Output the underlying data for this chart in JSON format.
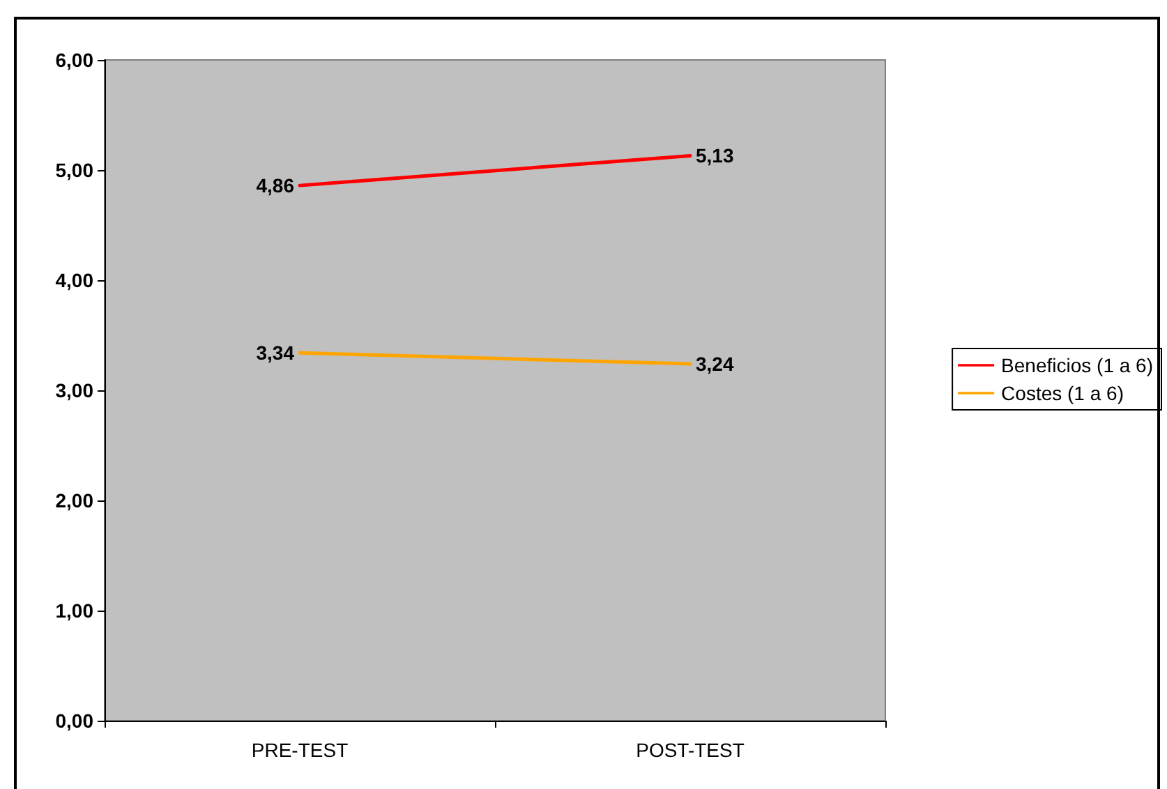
{
  "chart_data": {
    "type": "line",
    "categories": [
      "PRE-TEST",
      "POST-TEST"
    ],
    "series": [
      {
        "name": "Beneficios (1 a 6)",
        "color": "#ff0000",
        "values": [
          4.86,
          5.13
        ],
        "value_labels": [
          "4,86",
          "5,13"
        ]
      },
      {
        "name": "Costes (1 a 6)",
        "color": "#ffa500",
        "values": [
          3.34,
          3.24
        ],
        "value_labels": [
          "3,34",
          "3,24"
        ]
      }
    ],
    "ylim": [
      0,
      6
    ],
    "yticks": [
      {
        "value": 0,
        "label": "0,00"
      },
      {
        "value": 1,
        "label": "1,00"
      },
      {
        "value": 2,
        "label": "2,00"
      },
      {
        "value": 3,
        "label": "3,00"
      },
      {
        "value": 4,
        "label": "4,00"
      },
      {
        "value": 5,
        "label": "5,00"
      },
      {
        "value": 6,
        "label": "6,00"
      }
    ],
    "grid": false,
    "legend": "right",
    "marker": "none",
    "line_style": "solid"
  }
}
